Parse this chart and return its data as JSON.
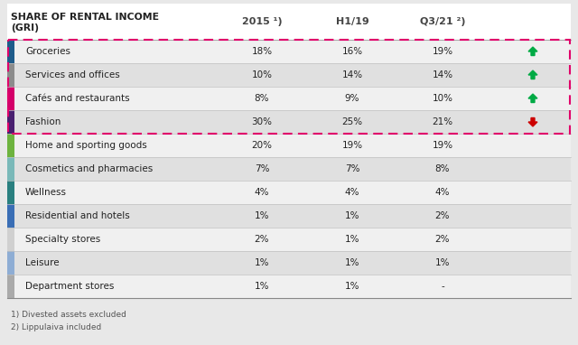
{
  "title_line1": "SHARE OF RENTAL INCOME",
  "title_line2": "(GRI)",
  "col_headers": [
    "2015 ¹)",
    "H1/19",
    "Q3/21 ²)"
  ],
  "rows": [
    {
      "label": "Groceries",
      "vals": [
        "18%",
        "16%",
        "19%"
      ],
      "arrow": "up",
      "side_color": "#1f5c8b",
      "highlighted": true
    },
    {
      "label": "Services and offices",
      "vals": [
        "10%",
        "14%",
        "14%"
      ],
      "arrow": "up",
      "side_color": "#8c8c8c",
      "highlighted": true
    },
    {
      "label": "Cafés and restaurants",
      "vals": [
        "8%",
        "9%",
        "10%"
      ],
      "arrow": "up",
      "side_color": "#d4006a",
      "highlighted": true
    },
    {
      "label": "Fashion",
      "vals": [
        "30%",
        "25%",
        "21%"
      ],
      "arrow": "down",
      "side_color": "#4a2070",
      "highlighted": true
    },
    {
      "label": "Home and sporting goods",
      "vals": [
        "20%",
        "19%",
        "19%"
      ],
      "arrow": null,
      "side_color": "#6db33f",
      "highlighted": false
    },
    {
      "label": "Cosmetics and pharmacies",
      "vals": [
        "7%",
        "7%",
        "8%"
      ],
      "arrow": null,
      "side_color": "#7ab9b9",
      "highlighted": false
    },
    {
      "label": "Wellness",
      "vals": [
        "4%",
        "4%",
        "4%"
      ],
      "arrow": null,
      "side_color": "#2a8080",
      "highlighted": false
    },
    {
      "label": "Residential and hotels",
      "vals": [
        "1%",
        "1%",
        "2%"
      ],
      "arrow": null,
      "side_color": "#3a6eb5",
      "highlighted": false
    },
    {
      "label": "Specialty stores",
      "vals": [
        "2%",
        "1%",
        "2%"
      ],
      "arrow": null,
      "side_color": "#d0d0d0",
      "highlighted": false
    },
    {
      "label": "Leisure",
      "vals": [
        "1%",
        "1%",
        "1%"
      ],
      "arrow": null,
      "side_color": "#8eadd4",
      "highlighted": false
    },
    {
      "label": "Department stores",
      "vals": [
        "1%",
        "1%",
        "-"
      ],
      "arrow": null,
      "side_color": "#aaaaaa",
      "highlighted": false
    }
  ],
  "footnotes": [
    "1) Divested assets excluded",
    "2) Lippulaiva included"
  ],
  "bg_color": "#e8e8e8",
  "row_bg_even": "#f0f0f0",
  "row_bg_odd": "#e0e0e0",
  "highlight_border_color": "#e0006a",
  "arrow_up_color": "#00aa44",
  "arrow_down_color": "#cc0000",
  "text_color": "#222222",
  "header_text_color": "#222222",
  "header_col_text_color": "#444444"
}
